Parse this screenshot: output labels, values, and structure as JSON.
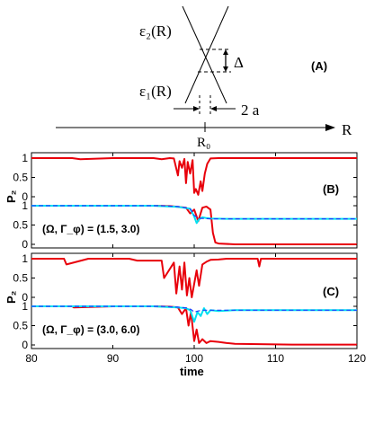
{
  "diagram_A": {
    "label": "(A)",
    "eps2": "ε₂(R)",
    "eps1": "ε₁(R)",
    "delta": "Δ",
    "width": "2 a",
    "axis": "R",
    "r0": "R₀"
  },
  "chart_data": [
    {
      "type": "line",
      "panel": "(B)",
      "ylabel": "P₂",
      "annotation": "(Ω, Γ_φ) = (1.5, 3.0)",
      "xlim": [
        80,
        120
      ],
      "upper": {
        "ylim": [
          0,
          1
        ],
        "yticks": [
          "0",
          "0.5",
          "1"
        ],
        "series": [
          {
            "color": "#e8000b",
            "x": [
              80,
              85,
              86,
              90,
              92,
              95,
              96,
              97,
              97.5,
              98,
              98.2,
              98.5,
              98.8,
              99,
              99.2,
              99.5,
              99.8,
              100,
              100.2,
              100.5,
              100.8,
              101,
              101.3,
              101.6,
              102,
              103,
              106,
              110,
              115,
              120
            ],
            "y": [
              1.0,
              1.0,
              0.97,
              1.0,
              1.0,
              1.0,
              0.97,
              1.0,
              0.99,
              0.55,
              0.92,
              0.75,
              0.98,
              0.35,
              0.9,
              0.6,
              0.95,
              0.1,
              0.2,
              0.05,
              0.4,
              0.15,
              0.6,
              0.85,
              0.99,
              1.0,
              1.0,
              1.0,
              1.0,
              1.0
            ]
          }
        ]
      },
      "lower": {
        "ylim": [
          0,
          1
        ],
        "yticks": [
          "0",
          "0.5",
          "1"
        ],
        "series": [
          {
            "color": "#e8000b",
            "x": [
              80,
              95,
              97,
              98,
              99,
              99.5,
              100,
              100.5,
              101,
              101.5,
              102,
              102.3,
              102.6,
              103,
              105,
              110,
              120
            ],
            "y": [
              1.0,
              1.0,
              0.99,
              0.97,
              0.95,
              0.8,
              0.9,
              0.6,
              0.95,
              0.98,
              0.9,
              0.3,
              0.05,
              0.02,
              0.0,
              0.0,
              0.0
            ]
          },
          {
            "color": "#00e0f0",
            "x": [
              80,
              95,
              97,
              98,
              99,
              99.5,
              100,
              100.3,
              100.6,
              101,
              101.5,
              102,
              104,
              108,
              112,
              116,
              120
            ],
            "y": [
              1.0,
              1.0,
              0.98,
              0.97,
              0.94,
              0.92,
              0.72,
              0.55,
              0.65,
              0.7,
              0.68,
              0.67,
              0.66,
              0.66,
              0.66,
              0.66,
              0.66
            ]
          },
          {
            "color": "#1e3cff",
            "dashed": true,
            "x": [
              80,
              96,
              98,
              99,
              99.6,
              100,
              100.5,
              101,
              102,
              104,
              108,
              120
            ],
            "y": [
              1.0,
              1.0,
              0.98,
              0.95,
              0.9,
              0.75,
              0.68,
              0.67,
              0.66,
              0.66,
              0.66,
              0.66
            ]
          }
        ]
      }
    },
    {
      "type": "line",
      "panel": "(C)",
      "ylabel": "P₂",
      "annotation": "(Ω, Γ_φ) = (3.0, 6.0)",
      "xlim": [
        80,
        120
      ],
      "xlabel": "time",
      "xticks": [
        "80",
        "90",
        "100",
        "110",
        "120"
      ],
      "upper": {
        "ylim": [
          0,
          1
        ],
        "yticks": [
          "0",
          "0.5",
          "1"
        ],
        "series": [
          {
            "color": "#e8000b",
            "x": [
              80,
              84,
              84.3,
              87,
              92,
              93,
              96,
              96.3,
              97.5,
              97.8,
              98.2,
              98.5,
              98.8,
              99.1,
              99.4,
              99.7,
              100,
              100.3,
              100.6,
              101,
              101.5,
              102,
              103,
              104,
              107.8,
              108,
              108.2,
              112,
              120
            ],
            "y": [
              1.0,
              1.0,
              0.85,
              1.0,
              1.0,
              0.95,
              0.95,
              0.5,
              0.9,
              0.1,
              0.8,
              0.2,
              0.9,
              0.05,
              0.5,
              0.0,
              0.35,
              0.7,
              0.3,
              0.85,
              0.92,
              0.97,
              0.98,
              1.0,
              1.0,
              0.8,
              1.0,
              1.0,
              1.0
            ]
          }
        ]
      },
      "lower": {
        "ylim": [
          0,
          1
        ],
        "yticks": [
          "0",
          "0.5",
          "1"
        ],
        "series": [
          {
            "color": "#e8000b",
            "x": [
              80,
              85,
              85.2,
              90,
              95,
              97,
              98,
              98.5,
              99,
              99.3,
              99.6,
              100,
              100.3,
              100.6,
              101,
              101.5,
              102,
              103,
              104,
              105,
              108,
              112,
              120
            ],
            "y": [
              1.0,
              1.0,
              0.97,
              1.0,
              1.0,
              0.99,
              0.97,
              0.8,
              0.95,
              0.5,
              0.85,
              0.1,
              0.4,
              0.05,
              0.15,
              0.05,
              0.1,
              0.08,
              0.05,
              0.03,
              0.02,
              0.01,
              0.01
            ]
          },
          {
            "color": "#00e0f0",
            "x": [
              80,
              95,
              97,
              98,
              99,
              99.5,
              100,
              100.4,
              100.8,
              101.2,
              101.6,
              102,
              103,
              105,
              108,
              112,
              120
            ],
            "y": [
              1.0,
              1.0,
              0.98,
              0.97,
              0.95,
              0.9,
              0.6,
              0.85,
              0.75,
              0.95,
              0.8,
              0.9,
              0.88,
              0.9,
              0.9,
              0.9,
              0.9
            ]
          },
          {
            "color": "#1e3cff",
            "dashed": true,
            "x": [
              80,
              96,
              98,
              99,
              99.6,
              100,
              100.5,
              101,
              102,
              104,
              108,
              120
            ],
            "y": [
              1.0,
              1.0,
              0.98,
              0.96,
              0.92,
              0.85,
              0.88,
              0.9,
              0.9,
              0.9,
              0.9,
              0.9
            ]
          }
        ]
      }
    }
  ]
}
